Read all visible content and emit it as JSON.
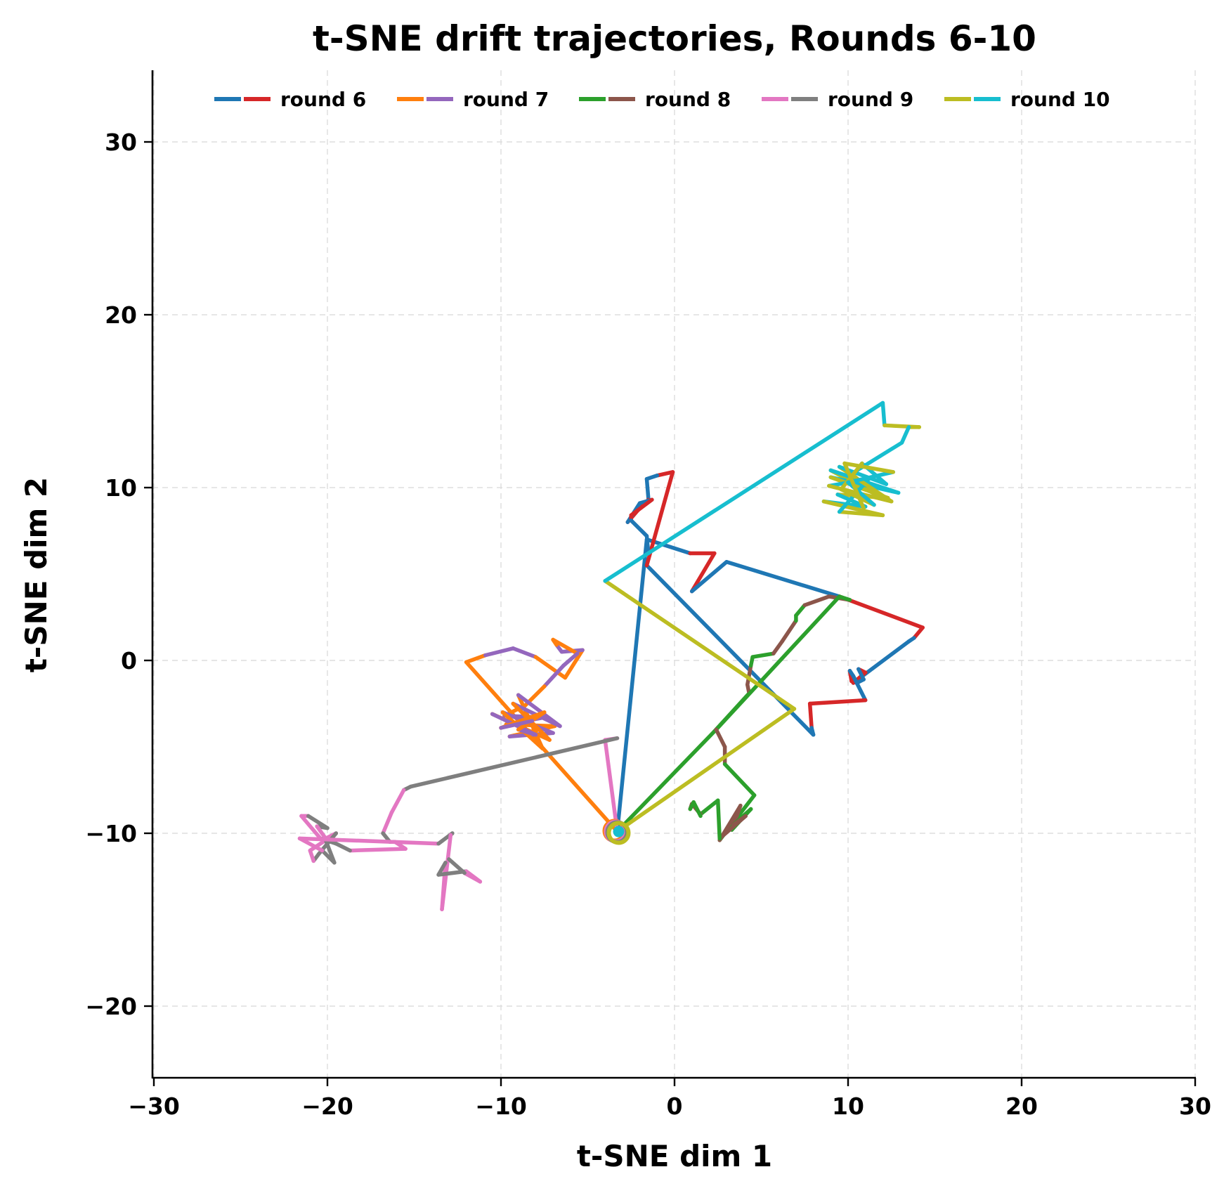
{
  "chart_data": {
    "type": "line",
    "title": "t-SNE drift trajectories, Rounds 6-10",
    "xlabel": "t-SNE dim 1",
    "ylabel": "t-SNE dim 2",
    "xlim": [
      -30,
      30
    ],
    "ylim": [
      -24.2,
      34.2
    ],
    "xticks": [
      -30,
      -20,
      -10,
      0,
      10,
      20,
      30
    ],
    "yticks": [
      -20,
      -10,
      0,
      10,
      20,
      30
    ],
    "xtick_labels": [
      "−30",
      "−20",
      "−10",
      "0",
      "10",
      "20",
      "30"
    ],
    "ytick_labels": [
      "−20",
      "−10",
      "0",
      "10",
      "20",
      "30"
    ],
    "grid": true,
    "legend_position": "upper center, single row",
    "start_point": [
      -3.3,
      -9.9
    ],
    "series": [
      {
        "name": "round 6",
        "colors": [
          "#1f77b4",
          "#d62728"
        ],
        "points": [
          [
            -3.3,
            -9.9
          ],
          [
            -1.6,
            7.0
          ],
          [
            0.9,
            6.2
          ],
          [
            2.3,
            6.2
          ],
          [
            1.0,
            4.0
          ],
          [
            3.0,
            5.7
          ],
          [
            9.5,
            3.7
          ],
          [
            14.3,
            1.9
          ],
          [
            13.8,
            1.3
          ],
          [
            13.5,
            1.1
          ],
          [
            10.3,
            -1.3
          ],
          [
            11.0,
            -0.7
          ],
          [
            10.6,
            -0.5
          ],
          [
            10.9,
            -1.1
          ],
          [
            10.5,
            -1.3
          ],
          [
            10.2,
            -1.2
          ],
          [
            10.1,
            -0.6
          ],
          [
            10.3,
            -0.9
          ],
          [
            11.0,
            -2.3
          ],
          [
            7.8,
            -2.5
          ],
          [
            7.9,
            -3.9
          ],
          [
            8.0,
            -4.3
          ],
          [
            -1.6,
            5.5
          ],
          [
            -0.1,
            10.9
          ],
          [
            -1.0,
            10.7
          ],
          [
            -1.6,
            10.5
          ],
          [
            -1.5,
            9.3
          ],
          [
            -2.1,
            8.7
          ],
          [
            -2.7,
            8.0
          ],
          [
            -2.0,
            9.1
          ],
          [
            -1.3,
            9.3
          ],
          [
            -2.5,
            8.4
          ],
          [
            -2.5,
            8.1
          ],
          [
            -1.6,
            7.2
          ],
          [
            -1.5,
            6.2
          ]
        ]
      },
      {
        "name": "round 7",
        "colors": [
          "#ff7f0e",
          "#9467bd"
        ],
        "points": [
          [
            -3.3,
            -9.9
          ],
          [
            -12.0,
            -0.1
          ],
          [
            -10.9,
            0.3
          ],
          [
            -9.3,
            0.7
          ],
          [
            -8.0,
            0.2
          ],
          [
            -6.3,
            -1.0
          ],
          [
            -5.3,
            0.6
          ],
          [
            -6.5,
            0.5
          ],
          [
            -6.8,
            0.9
          ],
          [
            -7.0,
            1.2
          ],
          [
            -5.6,
            0.4
          ],
          [
            -6.4,
            -0.3
          ],
          [
            -7.5,
            -1.5
          ],
          [
            -8.6,
            -2.6
          ],
          [
            -9.8,
            -3.2
          ],
          [
            -7.5,
            -3.3
          ],
          [
            -9.7,
            -3.7
          ],
          [
            -6.9,
            -3.8
          ],
          [
            -9.5,
            -4.4
          ],
          [
            -7.0,
            -4.2
          ],
          [
            -9.9,
            -3.0
          ],
          [
            -7.6,
            -5.1
          ],
          [
            -9.0,
            -2.0
          ],
          [
            -6.6,
            -3.8
          ],
          [
            -9.3,
            -2.5
          ],
          [
            -7.2,
            -4.6
          ],
          [
            -10.5,
            -3.1
          ],
          [
            -8.0,
            -4.3
          ],
          [
            -9.0,
            -4.0
          ],
          [
            -7.5,
            -3.0
          ],
          [
            -10.0,
            -3.9
          ],
          [
            -8.2,
            -3.5
          ]
        ]
      },
      {
        "name": "round 8",
        "colors": [
          "#2ca02c",
          "#8c564b"
        ],
        "points": [
          [
            -3.3,
            -9.9
          ],
          [
            2.3,
            -4.1
          ],
          [
            4.3,
            -1.9
          ],
          [
            4.2,
            -1.4
          ],
          [
            4.4,
            -0.3
          ],
          [
            4.5,
            0.2
          ],
          [
            5.7,
            0.4
          ],
          [
            6.2,
            1.1
          ],
          [
            7.0,
            2.3
          ],
          [
            7.0,
            2.6
          ],
          [
            7.5,
            3.2
          ],
          [
            8.9,
            3.7
          ],
          [
            10.1,
            3.5
          ],
          [
            9.5,
            3.7
          ],
          [
            2.4,
            -4.0
          ],
          [
            2.9,
            -5.0
          ],
          [
            2.9,
            -6.0
          ],
          [
            4.6,
            -7.8
          ],
          [
            2.6,
            -10.4
          ],
          [
            3.8,
            -8.4
          ],
          [
            3.3,
            -9.8
          ],
          [
            4.4,
            -8.6
          ],
          [
            3.4,
            -9.5
          ],
          [
            4.1,
            -9.0
          ],
          [
            2.6,
            -10.3
          ],
          [
            2.5,
            -8.1
          ],
          [
            1.5,
            -8.9
          ],
          [
            1.0,
            -8.3
          ],
          [
            0.9,
            -8.6
          ],
          [
            1.1,
            -8.2
          ],
          [
            1.5,
            -9.0
          ]
        ]
      },
      {
        "name": "round 9",
        "colors": [
          "#e377c2",
          "#7f7f7f"
        ],
        "points": [
          [
            -3.3,
            -9.9
          ],
          [
            -4.0,
            -4.6
          ],
          [
            -3.3,
            -4.5
          ],
          [
            -15.2,
            -7.3
          ],
          [
            -15.6,
            -7.5
          ],
          [
            -16.3,
            -8.8
          ],
          [
            -16.8,
            -10.0
          ],
          [
            -16.4,
            -10.5
          ],
          [
            -16.1,
            -10.5
          ],
          [
            -15.5,
            -10.9
          ],
          [
            -18.7,
            -11.0
          ],
          [
            -19.5,
            -10.6
          ],
          [
            -20.4,
            -10.3
          ],
          [
            -21.5,
            -9.0
          ],
          [
            -21.1,
            -9.0
          ],
          [
            -20.0,
            -9.7
          ],
          [
            -20.6,
            -9.6
          ],
          [
            -20.1,
            -10.3
          ],
          [
            -19.5,
            -10.0
          ],
          [
            -20.5,
            -11.2
          ],
          [
            -20.8,
            -11.6
          ],
          [
            -21.0,
            -11.0
          ],
          [
            -20.1,
            -10.4
          ],
          [
            -19.6,
            -11.7
          ],
          [
            -20.3,
            -11.0
          ],
          [
            -21.6,
            -10.3
          ],
          [
            -13.6,
            -10.6
          ],
          [
            -12.8,
            -10.0
          ],
          [
            -12.9,
            -10.1
          ],
          [
            -13.4,
            -14.4
          ],
          [
            -13.2,
            -11.7
          ],
          [
            -13.6,
            -12.4
          ],
          [
            -12.0,
            -12.2
          ],
          [
            -11.2,
            -12.8
          ],
          [
            -12.1,
            -12.3
          ],
          [
            -13.0,
            -11.5
          ]
        ]
      },
      {
        "name": "round 10",
        "colors": [
          "#bcbd22",
          "#17becf"
        ],
        "points": [
          [
            -3.3,
            -9.9
          ],
          [
            6.9,
            -2.8
          ],
          [
            -4.0,
            4.6
          ],
          [
            12.0,
            14.9
          ],
          [
            12.1,
            13.6
          ],
          [
            14.1,
            13.5
          ],
          [
            13.5,
            13.5
          ],
          [
            13.1,
            12.6
          ],
          [
            10.2,
            10.8
          ],
          [
            11.6,
            9.6
          ],
          [
            9.0,
            11.0
          ],
          [
            12.9,
            9.7
          ],
          [
            9.0,
            10.6
          ],
          [
            12.3,
            9.4
          ],
          [
            9.4,
            9.6
          ],
          [
            11.0,
            8.9
          ],
          [
            8.6,
            9.2
          ],
          [
            12.0,
            8.4
          ],
          [
            9.5,
            8.6
          ],
          [
            11.2,
            10.5
          ],
          [
            8.9,
            10.1
          ],
          [
            12.5,
            9.2
          ],
          [
            9.5,
            11.2
          ],
          [
            12.2,
            10.2
          ],
          [
            10.8,
            11.4
          ],
          [
            9.6,
            9.9
          ],
          [
            11.5,
            9.0
          ],
          [
            10.0,
            10.3
          ],
          [
            12.6,
            10.9
          ],
          [
            9.8,
            11.4
          ],
          [
            10.9,
            8.8
          ]
        ]
      }
    ]
  },
  "legend": {
    "items": [
      {
        "label": "round 6",
        "colors": [
          "#1f77b4",
          "#d62728"
        ]
      },
      {
        "label": "round 7",
        "colors": [
          "#ff7f0e",
          "#9467bd"
        ]
      },
      {
        "label": "round 8",
        "colors": [
          "#2ca02c",
          "#8c564b"
        ]
      },
      {
        "label": "round 9",
        "colors": [
          "#e377c2",
          "#7f7f7f"
        ]
      },
      {
        "label": "round 10",
        "colors": [
          "#bcbd22",
          "#17becf"
        ]
      }
    ]
  }
}
